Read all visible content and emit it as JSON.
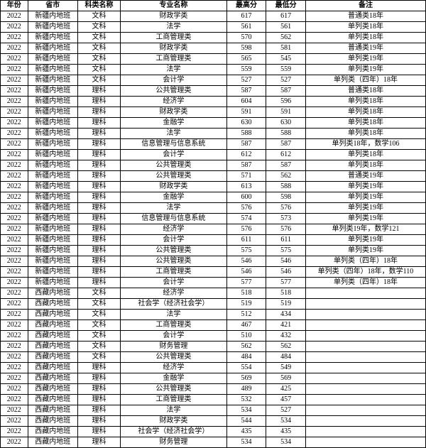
{
  "table": {
    "columns": [
      "年份",
      "省市",
      "科类名称",
      "专业名称",
      "最高分",
      "最低分",
      "备注"
    ],
    "rows": [
      [
        "2022",
        "新疆内地班",
        "文科",
        "财政学类",
        "617",
        "617",
        "普通类18年"
      ],
      [
        "2022",
        "新疆内地班",
        "文科",
        "法学",
        "561",
        "561",
        "单列类18年"
      ],
      [
        "2022",
        "新疆内地班",
        "文科",
        "工商管理类",
        "570",
        "562",
        "单列类18年"
      ],
      [
        "2022",
        "新疆内地班",
        "文科",
        "财政学类",
        "598",
        "581",
        "普通类19年"
      ],
      [
        "2022",
        "新疆内地班",
        "文科",
        "工商管理类",
        "565",
        "545",
        "单列类19年"
      ],
      [
        "2022",
        "新疆内地班",
        "文科",
        "法学",
        "559",
        "559",
        "单列类19年"
      ],
      [
        "2022",
        "新疆内地班",
        "文科",
        "会计学",
        "527",
        "527",
        "单列类（四年）18年"
      ],
      [
        "2022",
        "新疆内地班",
        "理科",
        "公共管理类",
        "587",
        "587",
        "普通类18年"
      ],
      [
        "2022",
        "新疆内地班",
        "理科",
        "经济学",
        "604",
        "596",
        "单列类18年"
      ],
      [
        "2022",
        "新疆内地班",
        "理科",
        "财政学类",
        "591",
        "591",
        "单列类18年"
      ],
      [
        "2022",
        "新疆内地班",
        "理科",
        "金融学",
        "630",
        "630",
        "单列类18年"
      ],
      [
        "2022",
        "新疆内地班",
        "理科",
        "法学",
        "588",
        "588",
        "单列类18年"
      ],
      [
        "2022",
        "新疆内地班",
        "理科",
        "信息管理与信息系统",
        "587",
        "587",
        "单列类18年，数学106"
      ],
      [
        "2022",
        "新疆内地班",
        "理科",
        "会计学",
        "612",
        "612",
        "单列类18年"
      ],
      [
        "2022",
        "新疆内地班",
        "理科",
        "公共管理类",
        "587",
        "587",
        "单列类18年"
      ],
      [
        "2022",
        "新疆内地班",
        "理科",
        "公共管理类",
        "571",
        "562",
        "普通类19年"
      ],
      [
        "2022",
        "新疆内地班",
        "理科",
        "财政学类",
        "613",
        "588",
        "单列类19年"
      ],
      [
        "2022",
        "新疆内地班",
        "理科",
        "金融学",
        "600",
        "598",
        "单列类19年"
      ],
      [
        "2022",
        "新疆内地班",
        "理科",
        "法学",
        "576",
        "576",
        "单列类19年"
      ],
      [
        "2022",
        "新疆内地班",
        "理科",
        "信息管理与信息系统",
        "574",
        "573",
        "单列类19年"
      ],
      [
        "2022",
        "新疆内地班",
        "理科",
        "经济学",
        "576",
        "576",
        "单列类19年，数学121"
      ],
      [
        "2022",
        "新疆内地班",
        "理科",
        "会计学",
        "611",
        "611",
        "单列类19年"
      ],
      [
        "2022",
        "新疆内地班",
        "理科",
        "公共管理类",
        "575",
        "575",
        "单列类19年"
      ],
      [
        "2022",
        "新疆内地班",
        "理科",
        "公共管理类",
        "546",
        "546",
        "单列类（四年）18年"
      ],
      [
        "2022",
        "新疆内地班",
        "理科",
        "工商管理类",
        "546",
        "546",
        "单列类（四年）18年，数学110"
      ],
      [
        "2022",
        "新疆内地班",
        "理科",
        "会计学",
        "577",
        "577",
        "单列类（四年）18年"
      ],
      [
        "2022",
        "西藏内地班",
        "文科",
        "经济学",
        "518",
        "518",
        ""
      ],
      [
        "2022",
        "西藏内地班",
        "文科",
        "社会学（经济社会学）",
        "519",
        "519",
        ""
      ],
      [
        "2022",
        "西藏内地班",
        "文科",
        "法学",
        "512",
        "434",
        ""
      ],
      [
        "2022",
        "西藏内地班",
        "文科",
        "工商管理类",
        "467",
        "421",
        ""
      ],
      [
        "2022",
        "西藏内地班",
        "文科",
        "会计学",
        "510",
        "432",
        ""
      ],
      [
        "2022",
        "西藏内地班",
        "文科",
        "财务管理",
        "562",
        "562",
        ""
      ],
      [
        "2022",
        "西藏内地班",
        "文科",
        "公共管理类",
        "484",
        "484",
        ""
      ],
      [
        "2022",
        "西藏内地班",
        "理科",
        "经济学",
        "554",
        "549",
        ""
      ],
      [
        "2022",
        "西藏内地班",
        "理科",
        "金融学",
        "569",
        "569",
        ""
      ],
      [
        "2022",
        "西藏内地班",
        "理科",
        "公共管理类",
        "489",
        "425",
        ""
      ],
      [
        "2022",
        "西藏内地班",
        "理科",
        "工商管理类",
        "532",
        "457",
        ""
      ],
      [
        "2022",
        "西藏内地班",
        "理科",
        "法学",
        "534",
        "527",
        ""
      ],
      [
        "2022",
        "西藏内地班",
        "理科",
        "财政学类",
        "544",
        "534",
        ""
      ],
      [
        "2022",
        "西藏内地班",
        "理科",
        "社会学（经济社会学）",
        "435",
        "435",
        ""
      ],
      [
        "2022",
        "西藏内地班",
        "理科",
        "财务管理",
        "534",
        "534",
        ""
      ]
    ]
  }
}
